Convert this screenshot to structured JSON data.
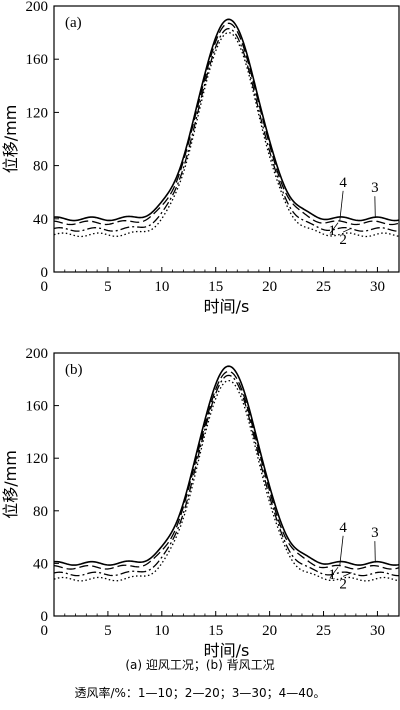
{
  "caption": {
    "line1": "(a) 迎风工况；(b) 背风工况",
    "line2": "透风率/%：1—10；2—20；3—30；4—40。"
  },
  "chart_data": [
    {
      "type": "line",
      "panel_label": "(a)",
      "xlabel": "时间/s",
      "ylabel": "位移/mm",
      "xlim": [
        0,
        32
      ],
      "ylim": [
        0,
        200
      ],
      "xticks": [
        5,
        10,
        15,
        20,
        25,
        30
      ],
      "yticks": [
        0,
        40,
        80,
        120,
        160,
        200
      ],
      "grid": false,
      "line_labels": [
        "1",
        "2",
        "3",
        "4"
      ],
      "series": [
        {
          "name": "1",
          "style": "dotted",
          "baseline": 28,
          "peak": 180
        },
        {
          "name": "2",
          "style": "dashdot",
          "baseline": 32,
          "peak": 183
        },
        {
          "name": "3",
          "style": "solid",
          "baseline": 40,
          "peak": 190
        },
        {
          "name": "4",
          "style": "dashed",
          "baseline": 37,
          "peak": 187
        }
      ],
      "peak_time": 16.2
    },
    {
      "type": "line",
      "panel_label": "(b)",
      "xlabel": "时间/s",
      "ylabel": "位移/mm",
      "xlim": [
        0,
        32
      ],
      "ylim": [
        0,
        200
      ],
      "xticks": [
        5,
        10,
        15,
        20,
        25,
        30
      ],
      "yticks": [
        0,
        40,
        80,
        120,
        160,
        200
      ],
      "grid": false,
      "line_labels": [
        "1",
        "2",
        "3",
        "4"
      ],
      "series": [
        {
          "name": "1",
          "style": "dotted",
          "baseline": 28,
          "peak": 179
        },
        {
          "name": "2",
          "style": "dashdot",
          "baseline": 32,
          "peak": 183
        },
        {
          "name": "3",
          "style": "solid",
          "baseline": 40,
          "peak": 190
        },
        {
          "name": "4",
          "style": "dashed",
          "baseline": 37,
          "peak": 186
        }
      ],
      "peak_time": 16.2
    }
  ]
}
